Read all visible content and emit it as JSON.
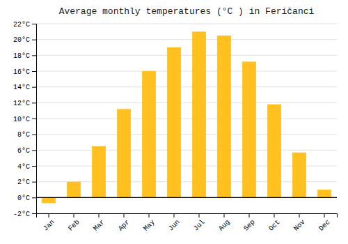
{
  "chart_data": {
    "type": "bar",
    "title": "Average monthly temperatures (°C ) in Feričanci",
    "categories": [
      "Jan",
      "Feb",
      "Mar",
      "Apr",
      "May",
      "Jun",
      "Jul",
      "Aug",
      "Sep",
      "Oct",
      "Nov",
      "Dec"
    ],
    "values": [
      -0.7,
      2.0,
      6.5,
      11.2,
      16.0,
      19.0,
      21.0,
      20.5,
      17.2,
      11.8,
      5.7,
      1.0
    ],
    "color": "#FFC020",
    "ylim": [
      -2,
      22
    ],
    "yticks": [
      {
        "value": -2,
        "label": "-2°C"
      },
      {
        "value": 0,
        "label": "0°C"
      },
      {
        "value": 2,
        "label": "2°C"
      },
      {
        "value": 4,
        "label": "4°C"
      },
      {
        "value": 6,
        "label": "6°C"
      },
      {
        "value": 8,
        "label": "8°C"
      },
      {
        "value": 10,
        "label": "10°C"
      },
      {
        "value": 12,
        "label": "12°C"
      },
      {
        "value": 14,
        "label": "14°C"
      },
      {
        "value": 16,
        "label": "16°C"
      },
      {
        "value": 18,
        "label": "18°C"
      },
      {
        "value": 20,
        "label": "20°C"
      },
      {
        "value": 22,
        "label": "22°C"
      }
    ],
    "grid": true
  }
}
